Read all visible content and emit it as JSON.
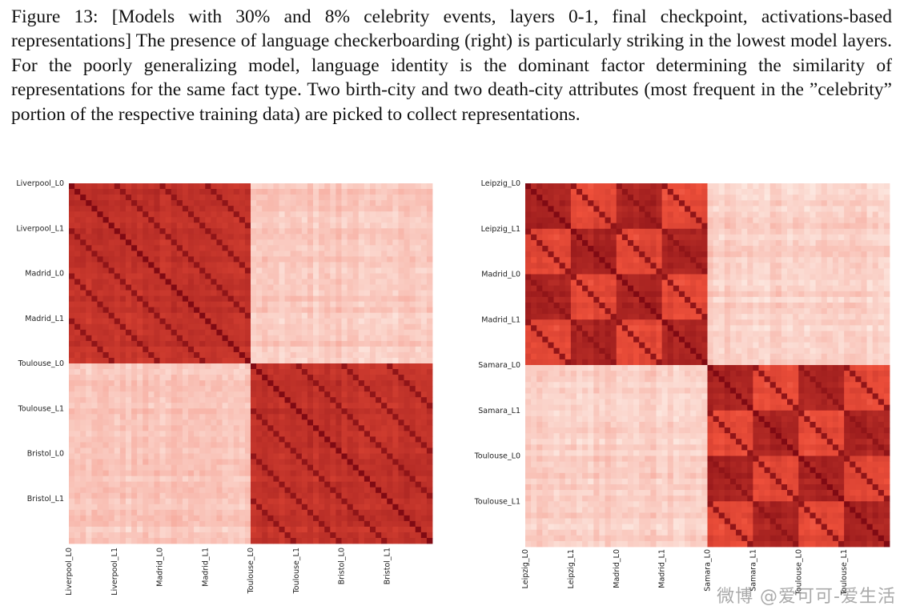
{
  "caption": {
    "label": "Figure 13:",
    "text": "[Models with 30% and 8% celebrity events, layers 0-1, final checkpoint, activations-based representations] The presence of language checkerboarding (right) is particularly striking in the lowest model layers. For the poorly generalizing model, language identity is the dominant factor determining the similarity of representations for the same fact type. Two birth-city and two death-city attributes (most frequent in the ”celebrity” portion of the respective training data) are picked to collect representations."
  },
  "watermark": "微博 @爱可可-爱生活",
  "colors": {
    "low": "#fdeee7",
    "mid": "#ee4f3a",
    "high": "#7a0610"
  },
  "chart_data": [
    {
      "type": "heatmap",
      "position": "left",
      "labels": [
        "Liverpool_L0",
        "Liverpool_L1",
        "Madrid_L0",
        "Madrid_L1",
        "Toulouse_L0",
        "Toulouse_L1",
        "Bristol_L0",
        "Bristol_L1"
      ],
      "y_tick_labels": [
        "Liverpool_L0",
        "Liverpool_L1",
        "Madrid_L0",
        "Madrid_L1",
        "Toulouse_L0",
        "Toulouse_L1",
        "Bristol_L0",
        "Bristol_L1"
      ],
      "x_tick_labels": [
        "Liverpool_L0",
        "Liverpool_L1",
        "Madrid_L0",
        "Madrid_L1",
        "Toulouse_L0",
        "Toulouse_L1",
        "Bristol_L0",
        "Bristol_L1"
      ],
      "block_similarity": [
        [
          0.7,
          0.7,
          0.68,
          0.68,
          0.12,
          0.12,
          0.12,
          0.12
        ],
        [
          0.7,
          0.7,
          0.68,
          0.68,
          0.12,
          0.12,
          0.12,
          0.12
        ],
        [
          0.68,
          0.68,
          0.7,
          0.7,
          0.12,
          0.12,
          0.12,
          0.12
        ],
        [
          0.68,
          0.68,
          0.7,
          0.7,
          0.12,
          0.12,
          0.12,
          0.12
        ],
        [
          0.12,
          0.12,
          0.12,
          0.12,
          0.7,
          0.7,
          0.68,
          0.68
        ],
        [
          0.12,
          0.12,
          0.12,
          0.12,
          0.7,
          0.7,
          0.68,
          0.68
        ],
        [
          0.12,
          0.12,
          0.12,
          0.12,
          0.68,
          0.68,
          0.7,
          0.7
        ],
        [
          0.12,
          0.12,
          0.12,
          0.12,
          0.68,
          0.68,
          0.7,
          0.7
        ]
      ]
    },
    {
      "type": "heatmap",
      "position": "right",
      "labels": [
        "Leipzig_L0",
        "Leipzig_L1",
        "Madrid_L0",
        "Madrid_L1",
        "Samara_L0",
        "Samara_L1",
        "Toulouse_L0",
        "Toulouse_L1"
      ],
      "y_tick_labels": [
        "Leipzig_L0",
        "Leipzig_L1",
        "Madrid_L0",
        "Madrid_L1",
        "Samara_L0",
        "Samara_L1",
        "Toulouse_L0",
        "Toulouse_L1"
      ],
      "x_tick_labels": [
        "Leipzig_L0",
        "Leipzig_L1",
        "Madrid_L0",
        "Madrid_L1",
        "Samara_L0",
        "Samara_L1",
        "Toulouse_L0",
        "Toulouse_L1"
      ],
      "block_similarity": [
        [
          0.8,
          0.55,
          0.8,
          0.55,
          0.1,
          0.1,
          0.1,
          0.1
        ],
        [
          0.55,
          0.8,
          0.55,
          0.8,
          0.1,
          0.1,
          0.1,
          0.1
        ],
        [
          0.8,
          0.55,
          0.8,
          0.55,
          0.1,
          0.1,
          0.1,
          0.1
        ],
        [
          0.55,
          0.8,
          0.55,
          0.8,
          0.1,
          0.1,
          0.1,
          0.1
        ],
        [
          0.1,
          0.1,
          0.1,
          0.1,
          0.8,
          0.55,
          0.8,
          0.55
        ],
        [
          0.1,
          0.1,
          0.1,
          0.1,
          0.55,
          0.8,
          0.55,
          0.8
        ],
        [
          0.1,
          0.1,
          0.1,
          0.1,
          0.8,
          0.55,
          0.8,
          0.55
        ],
        [
          0.1,
          0.1,
          0.1,
          0.1,
          0.55,
          0.8,
          0.55,
          0.8
        ]
      ]
    }
  ]
}
